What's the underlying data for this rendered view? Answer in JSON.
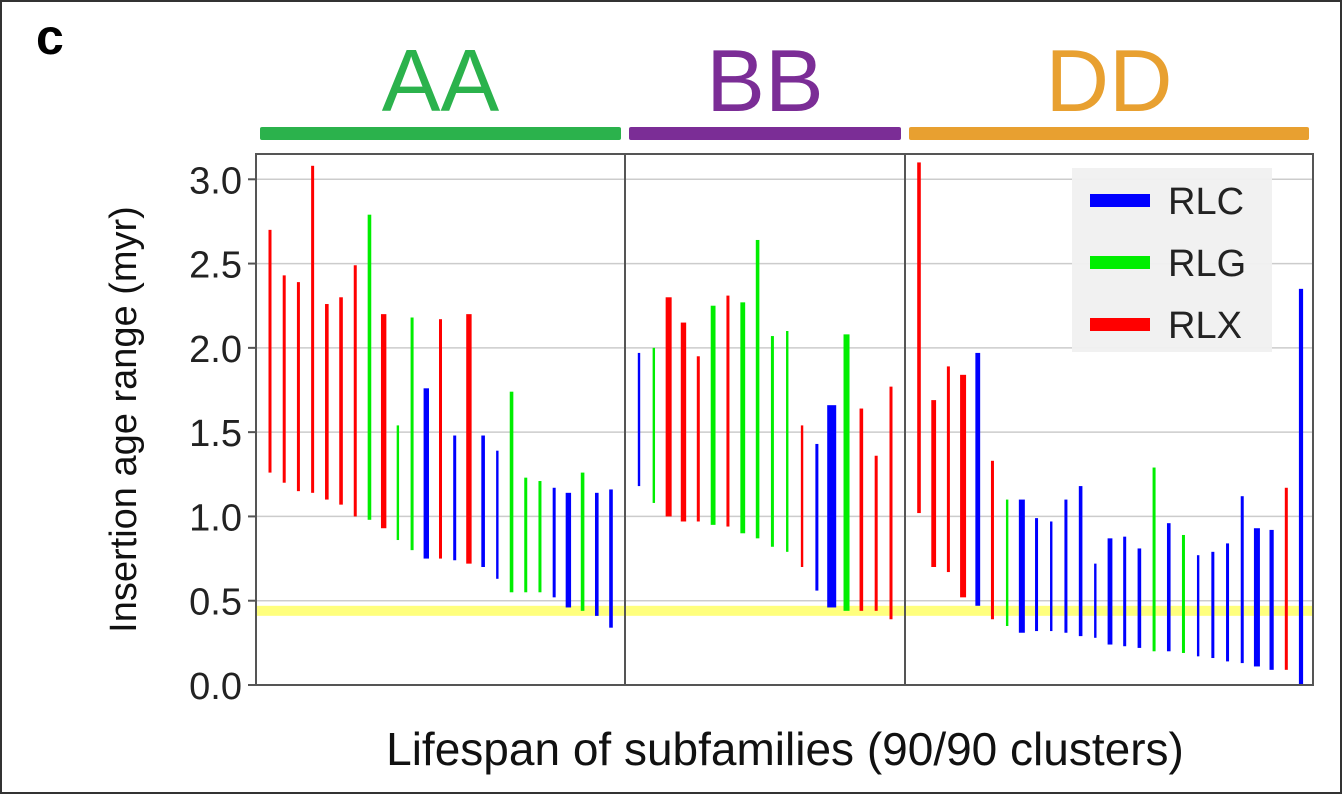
{
  "panel_label": "c",
  "chart_data": {
    "type": "bar",
    "xlabel": "Lifespan of subfamilies (90/90 clusters)",
    "ylabel": "Insertion age range (myr)",
    "ylim": [
      0,
      3.15
    ],
    "yticks": [
      "0.0",
      "0.5",
      "1.0",
      "1.5",
      "2.0",
      "2.5",
      "3.0"
    ],
    "grid": true,
    "reference_band": {
      "y": 0.44,
      "color": "#ffff66"
    },
    "legend_position": "top-right",
    "legend": [
      {
        "label": "RLC",
        "color": "#0000ff"
      },
      {
        "label": "RLG",
        "color": "#00ee00"
      },
      {
        "label": "RLX",
        "color": "#ff0000"
      }
    ],
    "groups": [
      {
        "name": "AA",
        "color": "#2bb24c",
        "bars": [
          {
            "type": "RLX",
            "low": 1.26,
            "high": 2.7,
            "weight": 1
          },
          {
            "type": "RLX",
            "low": 1.2,
            "high": 2.43,
            "weight": 1
          },
          {
            "type": "RLX",
            "low": 1.15,
            "high": 2.39,
            "weight": 1
          },
          {
            "type": "RLX",
            "low": 1.14,
            "high": 3.08,
            "weight": 1
          },
          {
            "type": "RLX",
            "low": 1.1,
            "high": 2.26,
            "weight": 1.2
          },
          {
            "type": "RLX",
            "low": 1.07,
            "high": 2.3,
            "weight": 1.2
          },
          {
            "type": "RLX",
            "low": 1.0,
            "high": 2.49,
            "weight": 1
          },
          {
            "type": "RLG",
            "low": 0.98,
            "high": 2.79,
            "weight": 1.2
          },
          {
            "type": "RLX",
            "low": 0.93,
            "high": 2.2,
            "weight": 1.8
          },
          {
            "type": "RLG",
            "low": 0.86,
            "high": 1.54,
            "weight": 0.8
          },
          {
            "type": "RLG",
            "low": 0.8,
            "high": 2.18,
            "weight": 1
          },
          {
            "type": "RLC",
            "low": 0.75,
            "high": 1.76,
            "weight": 1.8
          },
          {
            "type": "RLX",
            "low": 0.75,
            "high": 2.17,
            "weight": 1
          },
          {
            "type": "RLC",
            "low": 0.74,
            "high": 1.48,
            "weight": 1
          },
          {
            "type": "RLX",
            "low": 0.72,
            "high": 2.2,
            "weight": 1.8
          },
          {
            "type": "RLC",
            "low": 0.7,
            "high": 1.48,
            "weight": 1.2
          },
          {
            "type": "RLC",
            "low": 0.63,
            "high": 1.39,
            "weight": 0.8
          },
          {
            "type": "RLG",
            "low": 0.55,
            "high": 1.74,
            "weight": 1.2
          },
          {
            "type": "RLG",
            "low": 0.55,
            "high": 1.23,
            "weight": 1
          },
          {
            "type": "RLG",
            "low": 0.55,
            "high": 1.21,
            "weight": 1
          },
          {
            "type": "RLC",
            "low": 0.52,
            "high": 1.17,
            "weight": 1
          },
          {
            "type": "RLC",
            "low": 0.46,
            "high": 1.14,
            "weight": 1.8
          },
          {
            "type": "RLG",
            "low": 0.44,
            "high": 1.26,
            "weight": 1.2
          },
          {
            "type": "RLC",
            "low": 0.41,
            "high": 1.14,
            "weight": 1.2
          },
          {
            "type": "RLC",
            "low": 0.34,
            "high": 1.16,
            "weight": 1.2
          }
        ]
      },
      {
        "name": "BB",
        "color": "#7b2d96",
        "bars": [
          {
            "type": "RLC",
            "low": 1.18,
            "high": 1.97,
            "weight": 0.8
          },
          {
            "type": "RLG",
            "low": 1.08,
            "high": 2.0,
            "weight": 0.8
          },
          {
            "type": "RLX",
            "low": 1.0,
            "high": 2.3,
            "weight": 2
          },
          {
            "type": "RLX",
            "low": 0.97,
            "high": 2.15,
            "weight": 1.8
          },
          {
            "type": "RLX",
            "low": 0.97,
            "high": 1.95,
            "weight": 1
          },
          {
            "type": "RLG",
            "low": 0.95,
            "high": 2.25,
            "weight": 1.6
          },
          {
            "type": "RLX",
            "low": 0.94,
            "high": 2.31,
            "weight": 1
          },
          {
            "type": "RLG",
            "low": 0.9,
            "high": 2.27,
            "weight": 1.6
          },
          {
            "type": "RLG",
            "low": 0.87,
            "high": 2.64,
            "weight": 1.2
          },
          {
            "type": "RLG",
            "low": 0.82,
            "high": 2.07,
            "weight": 1
          },
          {
            "type": "RLG",
            "low": 0.79,
            "high": 2.1,
            "weight": 0.8
          },
          {
            "type": "RLX",
            "low": 0.7,
            "high": 1.54,
            "weight": 0.8
          },
          {
            "type": "RLC",
            "low": 0.56,
            "high": 1.43,
            "weight": 1
          },
          {
            "type": "RLC",
            "low": 0.46,
            "high": 1.66,
            "weight": 3
          },
          {
            "type": "RLG",
            "low": 0.44,
            "high": 2.08,
            "weight": 2
          },
          {
            "type": "RLX",
            "low": 0.44,
            "high": 1.64,
            "weight": 1.2
          },
          {
            "type": "RLX",
            "low": 0.44,
            "high": 1.36,
            "weight": 1
          },
          {
            "type": "RLX",
            "low": 0.39,
            "high": 1.77,
            "weight": 1
          }
        ]
      },
      {
        "name": "DD",
        "color": "#e8a030",
        "bars": [
          {
            "type": "RLX",
            "low": 1.02,
            "high": 3.1,
            "weight": 1.2
          },
          {
            "type": "RLX",
            "low": 0.7,
            "high": 1.69,
            "weight": 1.6
          },
          {
            "type": "RLX",
            "low": 0.67,
            "high": 1.89,
            "weight": 1
          },
          {
            "type": "RLX",
            "low": 0.52,
            "high": 1.84,
            "weight": 2
          },
          {
            "type": "RLC",
            "low": 0.47,
            "high": 1.97,
            "weight": 1.6
          },
          {
            "type": "RLX",
            "low": 0.39,
            "high": 1.33,
            "weight": 1
          },
          {
            "type": "RLG",
            "low": 0.35,
            "high": 1.1,
            "weight": 0.8
          },
          {
            "type": "RLC",
            "low": 0.31,
            "high": 1.1,
            "weight": 2
          },
          {
            "type": "RLC",
            "low": 0.32,
            "high": 0.99,
            "weight": 1
          },
          {
            "type": "RLC",
            "low": 0.32,
            "high": 0.97,
            "weight": 0.8
          },
          {
            "type": "RLC",
            "low": 0.31,
            "high": 1.1,
            "weight": 1
          },
          {
            "type": "RLC",
            "low": 0.29,
            "high": 1.18,
            "weight": 1.2
          },
          {
            "type": "RLC",
            "low": 0.28,
            "high": 0.72,
            "weight": 0.8
          },
          {
            "type": "RLC",
            "low": 0.24,
            "high": 0.87,
            "weight": 1.6
          },
          {
            "type": "RLC",
            "low": 0.23,
            "high": 0.88,
            "weight": 1
          },
          {
            "type": "RLC",
            "low": 0.22,
            "high": 0.81,
            "weight": 1.2
          },
          {
            "type": "RLG",
            "low": 0.2,
            "high": 1.29,
            "weight": 1
          },
          {
            "type": "RLC",
            "low": 0.2,
            "high": 0.96,
            "weight": 1.2
          },
          {
            "type": "RLG",
            "low": 0.19,
            "high": 0.89,
            "weight": 1
          },
          {
            "type": "RLC",
            "low": 0.17,
            "high": 0.77,
            "weight": 0.8
          },
          {
            "type": "RLC",
            "low": 0.16,
            "high": 0.79,
            "weight": 1
          },
          {
            "type": "RLC",
            "low": 0.14,
            "high": 0.84,
            "weight": 1
          },
          {
            "type": "RLC",
            "low": 0.13,
            "high": 1.12,
            "weight": 1
          },
          {
            "type": "RLC",
            "low": 0.11,
            "high": 0.93,
            "weight": 2
          },
          {
            "type": "RLC",
            "low": 0.09,
            "high": 0.92,
            "weight": 1.4
          },
          {
            "type": "RLX",
            "low": 0.09,
            "high": 1.17,
            "weight": 1
          },
          {
            "type": "RLC",
            "low": 0.0,
            "high": 2.35,
            "weight": 1.4
          }
        ]
      }
    ]
  }
}
